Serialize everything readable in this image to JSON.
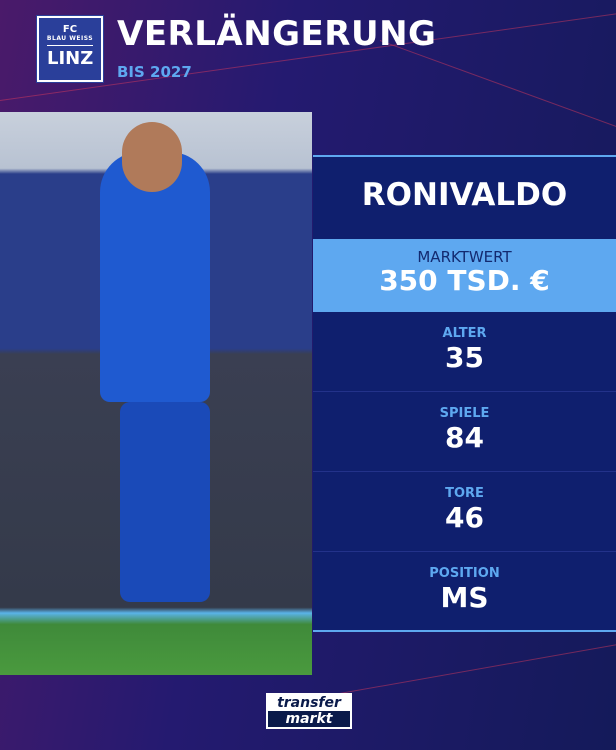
{
  "header": {
    "club_logo_text": "FC BLAU WEISS LINZ",
    "title": "VERLÄNGERUNG",
    "subtitle": "BIS 2027"
  },
  "player": {
    "name": "RONIVALDO"
  },
  "market_value": {
    "label": "MARKTWERT",
    "value": "350 TSD. €"
  },
  "stats": [
    {
      "label": "ALTER",
      "value": "35"
    },
    {
      "label": "SPIELE",
      "value": "84"
    },
    {
      "label": "TORE",
      "value": "46"
    },
    {
      "label": "POSITION",
      "value": "MS"
    }
  ],
  "footer": {
    "brand_logo": "transfermarkt"
  },
  "colors": {
    "accent": "#5ea8f0",
    "panel": "#0f1f6e"
  }
}
